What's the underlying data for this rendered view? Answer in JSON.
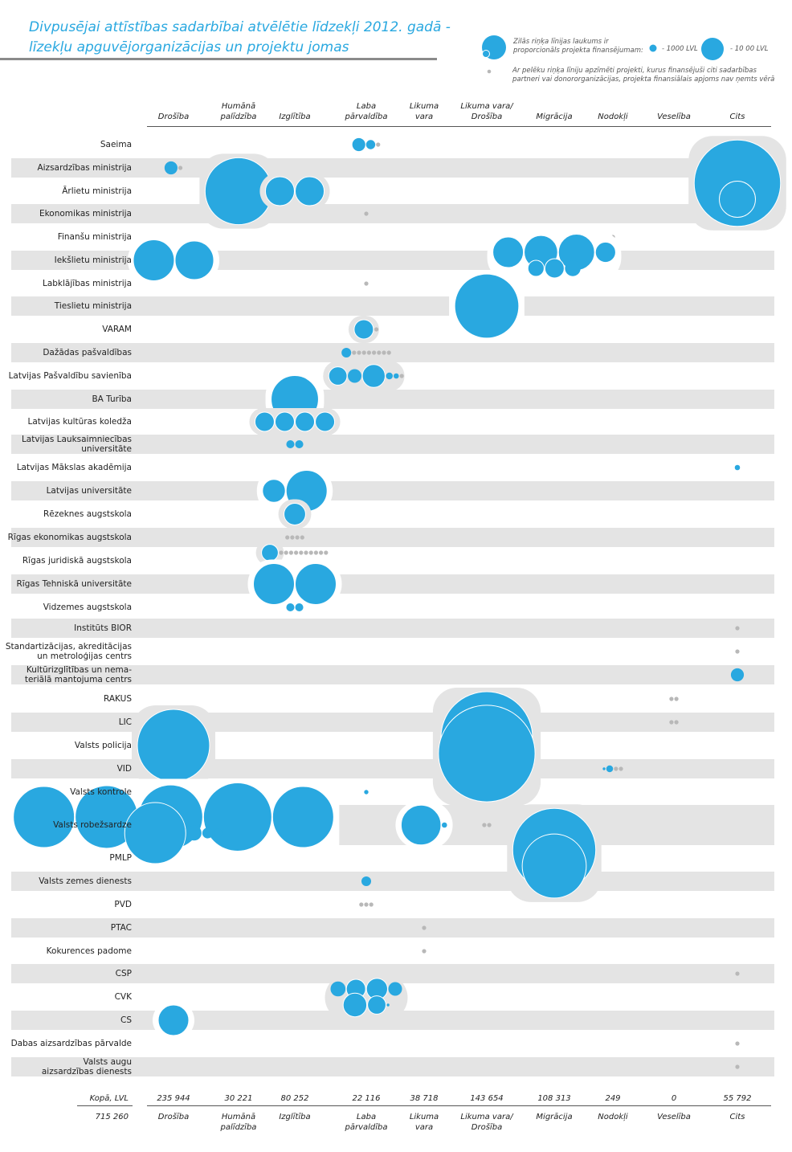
{
  "header": {
    "title_line1": "Divpusējai attīstības sadarbībai atvēlētie līdzekļi 2012. gadā -",
    "title_line2": "līzekļu apguvējorganizācijas un projektu jomas"
  },
  "legend": {
    "area_note_line1": "Zilās riņķa līnijas laukums ir",
    "area_note_line2": "proporcionāls projekta finansējumam:",
    "small_label": "- 1000 LVL",
    "large_label": "- 10 00 LVL",
    "gray_note_line1": "Ar pelēku riņķa līniju apzīmēti projekti, kurus finansējuši citi sadarbības",
    "gray_note_line2": "partneri vai donororganizācijas, projekta finansiālais apjoms nav ņemts vērā",
    "colors": {
      "funded": "#29a8e0",
      "other_donor": "#b8b8b8",
      "band": "#e4e4e4"
    }
  },
  "chart_data": {
    "type": "bubble-matrix",
    "title": "Divpusējai attīstības sadarbībai atvēlētie līdzekļi 2012. gadā - līzekļu apguvējorganizācijas un projektu jomas",
    "columns": [
      "Drošība",
      "Humānā palīdzība",
      "Izglītība",
      "Laba pārvaldība",
      "Likuma vara",
      "Likuma vara/ Drošība",
      "Migrācija",
      "Nodokļi",
      "Veselība",
      "Cits"
    ],
    "column_lines": [
      [
        "Drošība"
      ],
      [
        "Humānā",
        "palīdzība"
      ],
      [
        "Izglītība"
      ],
      [
        "Laba",
        "pārvaldība"
      ],
      [
        "Likuma",
        "vara"
      ],
      [
        "Likuma vara/",
        "Drošība"
      ],
      [
        "Migrācija"
      ],
      [
        "Nodokļi"
      ],
      [
        "Veselība"
      ],
      [
        "Cits"
      ]
    ],
    "rows": [
      {
        "org": "Saeima",
        "cells": {
          "Laba pārvaldība": {
            "funded_lvl": [
              900,
              450
            ],
            "other_donor": 1
          }
        }
      },
      {
        "org": "Aizsardzības ministrija",
        "cells": {
          "Drošība": {
            "funded_lvl": [
              900
            ],
            "other_donor": 1
          }
        }
      },
      {
        "org": "Ārlietu ministrija",
        "cells": {
          "Humānā palīdzība": {
            "funded_lvl": [
              24000
            ]
          },
          "Izglītība": {
            "funded_lvl": [
              4500,
              4500
            ]
          },
          "Cits": {
            "funded_lvl": [
              40000,
              7000
            ]
          }
        }
      },
      {
        "org": "Ekonomikas ministrija",
        "cells": {
          "Laba pārvaldība": {
            "other_donor": 1
          }
        }
      },
      {
        "org": "Finanšu ministrija",
        "cells": {
          "Nodokļi": {
            "other_donor": 1
          }
        }
      },
      {
        "org": "Iekšlietu ministrija",
        "cells": {
          "Drošība": {
            "funded_lvl": [
              9000,
              8000
            ]
          },
          "Migrācija": {
            "funded_lvl": [
              5000,
              6000,
              7000,
              2200,
              1400,
              2000,
              1300
            ]
          }
        }
      },
      {
        "org": "Labklājības ministrija",
        "cells": {
          "Laba pārvaldība": {
            "other_donor": 1
          }
        }
      },
      {
        "org": "Tieslietu ministrija",
        "cells": {
          "Likuma vara/ Drošība": {
            "funded_lvl": [
              22000
            ]
          }
        }
      },
      {
        "org": "VARAM",
        "cells": {
          "Laba pārvaldība": {
            "funded_lvl": [
              2000
            ],
            "other_donor": 1
          }
        }
      },
      {
        "org": "Dažādas pašvaldības",
        "cells": {
          "Laba pārvaldība": {
            "funded_lvl": [
              500
            ],
            "other_donor": 8
          }
        }
      },
      {
        "org": "Latvijas Pašvaldību savienība",
        "cells": {
          "Laba pārvaldība": {
            "funded_lvl": [
              1800,
              1000,
              2800,
              250,
              150
            ],
            "other_donor": 1
          }
        }
      },
      {
        "org": "BA Turība",
        "cells": {
          "Izglītība": {
            "funded_lvl": [
              12000
            ]
          }
        }
      },
      {
        "org": "Latvijas kultūras koledža",
        "cells": {
          "Izglītība": {
            "funded_lvl": [
              2000,
              2000,
              2000,
              2000
            ]
          }
        }
      },
      {
        "org": "Latvijas Lauksaimniecības universitāte",
        "cells": {
          "Izglītība": {
            "funded_lvl": [
              350,
              350
            ]
          }
        }
      },
      {
        "org": "Latvijas Mākslas akadēmija",
        "cells": {
          "Cits": {
            "funded_lvl": [
              150
            ]
          }
        }
      },
      {
        "org": "Latvijas universitāte",
        "cells": {
          "Izglītība": {
            "funded_lvl": [
              2800,
              9000
            ]
          }
        }
      },
      {
        "org": "Rēzeknes augstskola",
        "cells": {
          "Izglītība": {
            "funded_lvl": [
              2500
            ]
          }
        }
      },
      {
        "org": "Rīgas ekonomikas augstskola",
        "cells": {
          "Izglītība": {
            "other_donor": 4
          }
        }
      },
      {
        "org": "Rīgas juridiskā augstskola",
        "cells": {
          "Izglītība": {
            "funded_lvl": [
              1500
            ],
            "other_donor": 20
          }
        }
      },
      {
        "org": "Rīgas Tehniskā universitāte",
        "cells": {
          "Izglītība": {
            "funded_lvl": [
              9000,
              9000
            ]
          }
        }
      },
      {
        "org": "Vidzemes augstskola",
        "cells": {
          "Izglītība": {
            "funded_lvl": [
              350,
              350
            ]
          }
        }
      },
      {
        "org": "Institūts BIOR",
        "cells": {
          "Cits": {
            "other_donor": 1
          }
        }
      },
      {
        "org": "Standartizācijas, akreditācijas un metroloģijas centrs",
        "cells": {
          "Cits": {
            "other_donor": 1
          }
        }
      },
      {
        "org": "Kultūrizglītības un nemateriālā mantojuma centrs",
        "cells": {
          "Cits": {
            "funded_lvl": [
              900
            ]
          }
        }
      },
      {
        "org": "RAKUS",
        "cells": {
          "Veselība": {
            "other_donor": 2
          }
        }
      },
      {
        "org": "LIC",
        "cells": {
          "Veselība": {
            "other_donor": 2
          }
        }
      },
      {
        "org": "Valsts policija",
        "cells": {
          "Drošība": {
            "funded_lvl": [
              28000
            ]
          },
          "Likuma vara/ Drošība": {
            "funded_lvl": [
              45000,
              50000
            ]
          }
        }
      },
      {
        "org": "VID",
        "cells": {
          "Nodokļi": {
            "funded_lvl": [
              40,
              250
            ],
            "other_donor": 2
          }
        }
      },
      {
        "org": "Valsts kontrole",
        "cells": {
          "Laba pārvaldība": {
            "funded_lvl": [
              100
            ]
          }
        }
      },
      {
        "org": "Valsts robežsardze",
        "cells": {
          "Drošība": {
            "funded_lvl": [
              20000,
              21000,
              22000,
              25000,
              20000,
              20000,
              1200,
              600,
              400
            ]
          },
          "Likuma vara": {
            "funded_lvl": [
              8500,
              150
            ]
          },
          "Likuma vara/ Drošība": {
            "other_donor": 2
          },
          "Migrācija": {
            "funded_lvl": [
              20,
              20
            ]
          }
        }
      },
      {
        "org": "PMLP",
        "cells": {
          "Migrācija": {
            "funded_lvl": [
              37000,
              22000
            ]
          }
        }
      },
      {
        "org": "Valsts zemes dienests",
        "cells": {
          "Laba pārvaldība": {
            "funded_lvl": [
              500
            ]
          }
        }
      },
      {
        "org": "PVD",
        "cells": {
          "Laba pārvaldība": {
            "other_donor": 3
          }
        }
      },
      {
        "org": "PTAC",
        "cells": {
          "Likuma vara": {
            "other_donor": 1
          }
        }
      },
      {
        "org": "Kokurences padome",
        "cells": {
          "Likuma vara": {
            "other_donor": 1
          }
        }
      },
      {
        "org": "CSP",
        "cells": {
          "Cits": {
            "other_donor": 1
          }
        }
      },
      {
        "org": "CVK",
        "cells": {
          "Laba pārvaldība": {
            "funded_lvl": [
              1200,
              2000,
              2400,
              1000,
              3000,
              1800,
              40
            ]
          }
        }
      },
      {
        "org": "CS",
        "cells": {
          "Drošība": {
            "funded_lvl": [
              5000
            ]
          }
        }
      },
      {
        "org": "Dabas aizsardzības pārvalde",
        "cells": {
          "Cits": {
            "other_donor": 1
          }
        }
      },
      {
        "org": "Valsts augu aizsardzības dienests",
        "cells": {
          "Cits": {
            "other_donor": 1
          }
        }
      }
    ],
    "totals_label": "Kopā, LVL",
    "totals": [
      "235 944",
      "30 221",
      "80 252",
      "22 116",
      "38 718",
      "143 654",
      "108 313",
      "249",
      "0",
      "55 792"
    ],
    "grand_total": "715 260"
  },
  "row_labels": [
    [
      "Saeima"
    ],
    [
      "Aizsardzības ministrija"
    ],
    [
      "Ārlietu ministrija"
    ],
    [
      "Ekonomikas ministrija"
    ],
    [
      "Finanšu ministrija"
    ],
    [
      "Iekšlietu ministrija"
    ],
    [
      "Labklājības ministrija"
    ],
    [
      "Tieslietu ministrija"
    ],
    [
      "VARAM"
    ],
    [
      "Dažādas pašvaldības"
    ],
    [
      "Latvijas Pašvaldību savienība"
    ],
    [
      "BA Turība"
    ],
    [
      "Latvijas kultūras koledža"
    ],
    [
      "Latvijas Lauksaimniecības",
      "universitāte"
    ],
    [
      "Latvijas Mākslas akadēmija"
    ],
    [
      "Latvijas universitāte"
    ],
    [
      "Rēzeknes augstskola"
    ],
    [
      "Rīgas ekonomikas augstskola"
    ],
    [
      "Rīgas juridiskā augstskola"
    ],
    [
      "Rīgas Tehniskā universitāte"
    ],
    [
      "Vidzemes augstskola"
    ],
    [
      "Institūts BIOR"
    ],
    [
      "Standartizācijas, akreditācijas",
      "un metroloģijas centrs"
    ],
    [
      "Kultūrizglītības un nema-",
      "teriālā mantojuma centrs"
    ],
    [
      "RAKUS"
    ],
    [
      "LIC"
    ],
    [
      "Valsts policija"
    ],
    [
      "VID"
    ],
    [
      "Valsts kontrole"
    ],
    [
      "Valsts robežsardze"
    ],
    [
      "PMLP"
    ],
    [
      "Valsts zemes dienests"
    ],
    [
      "PVD"
    ],
    [
      "PTAC"
    ],
    [
      "Kokurences padome"
    ],
    [
      "CSP"
    ],
    [
      "CVK"
    ],
    [
      "CS"
    ],
    [
      "Dabas aizsardzības pārvalde"
    ],
    [
      "Valsts augu",
      "aizsardzības dienests"
    ]
  ]
}
